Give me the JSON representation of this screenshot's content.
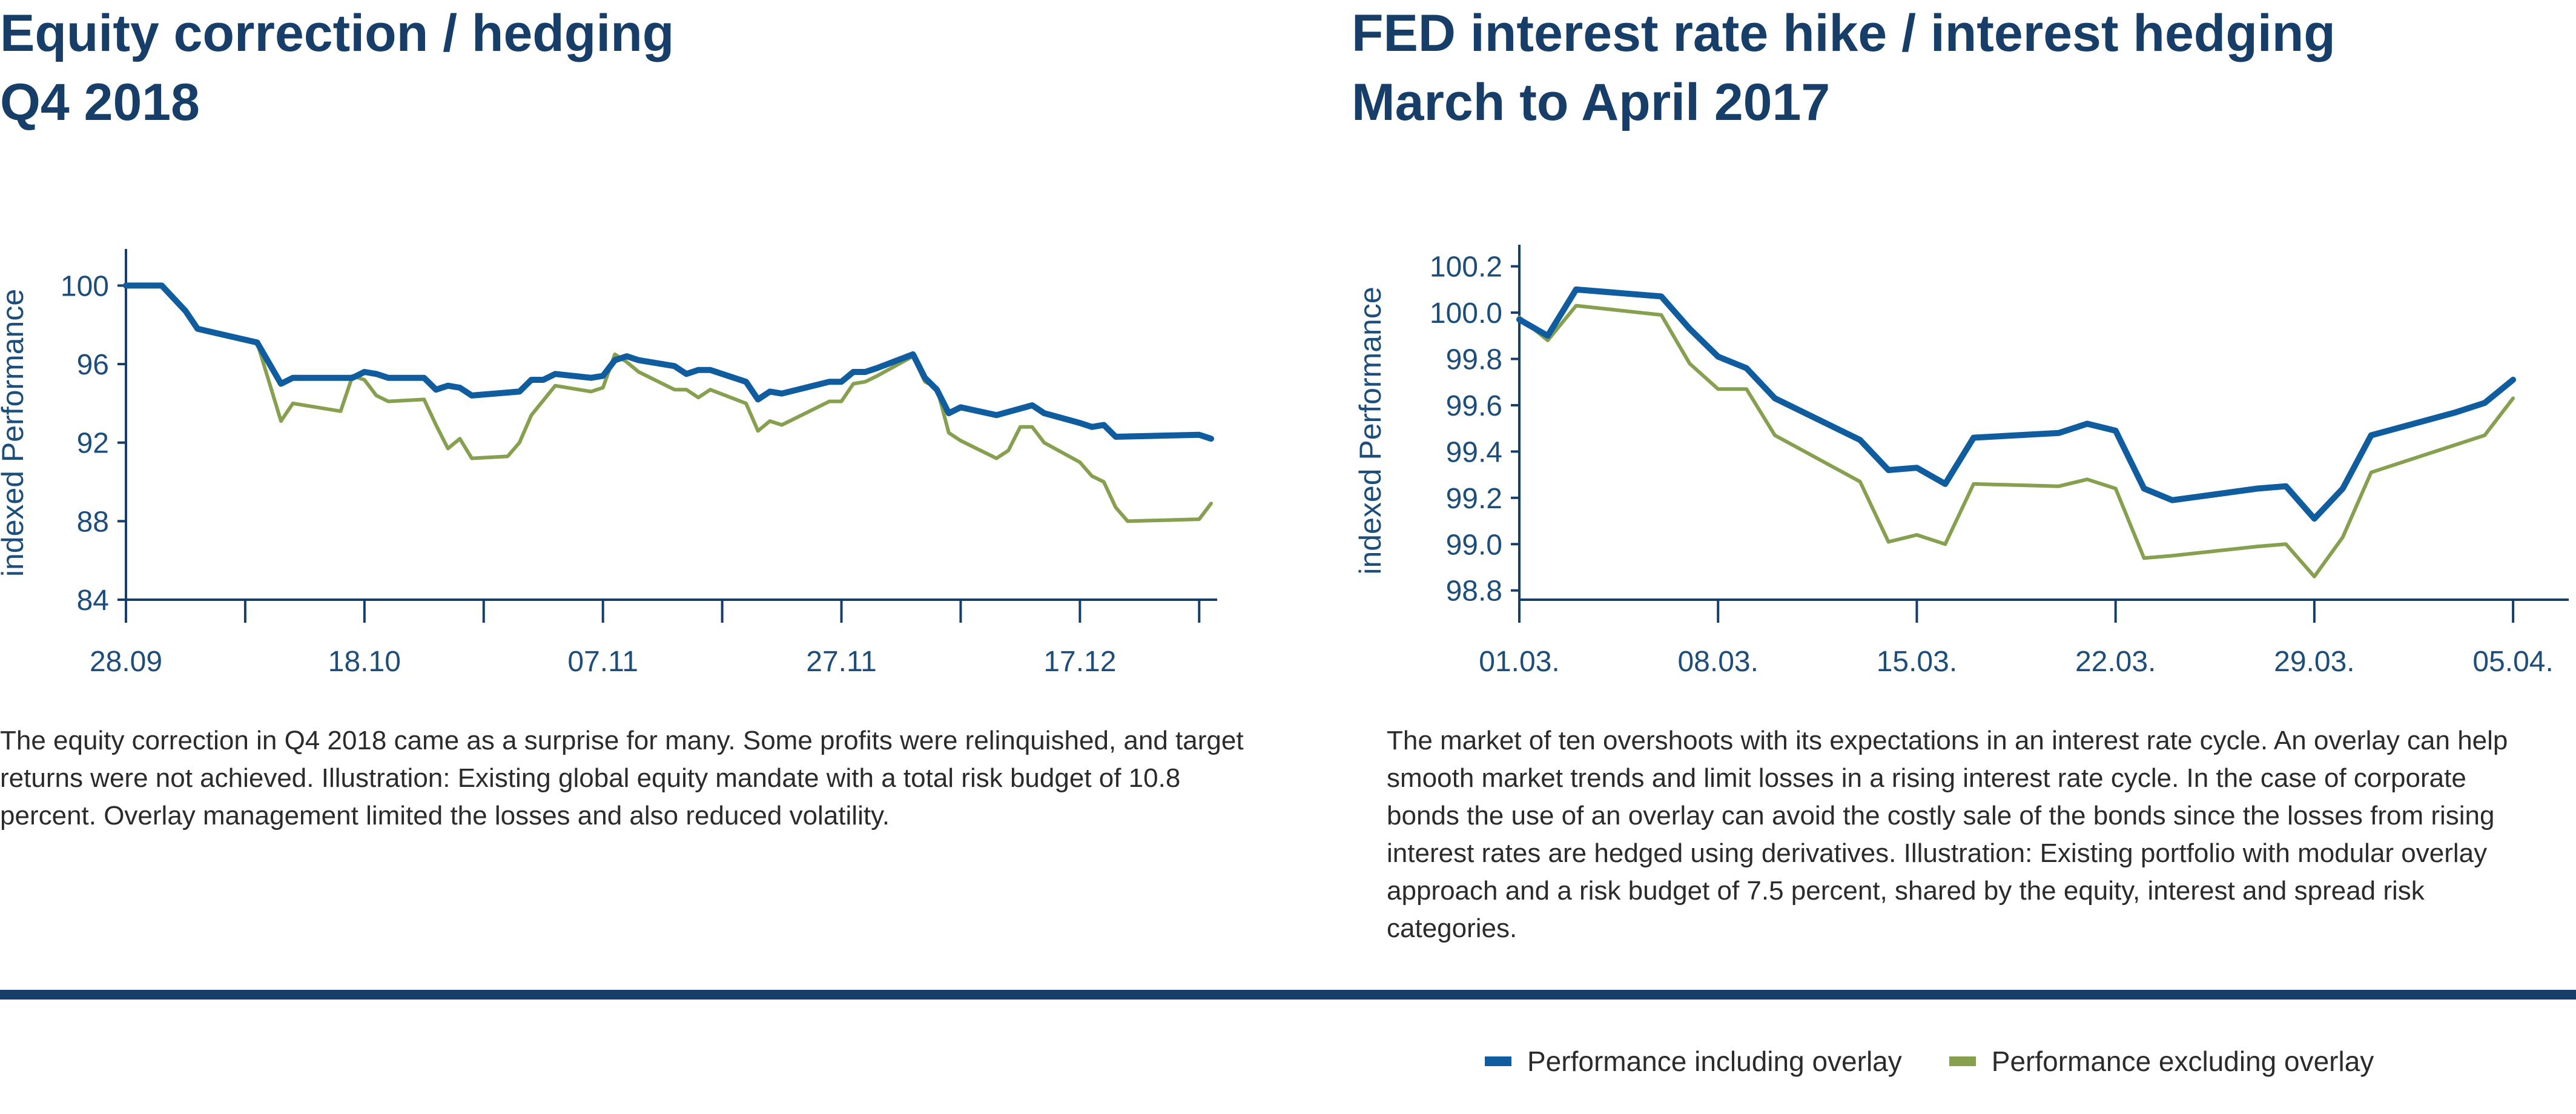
{
  "colors": {
    "with_overlay": "#0f5c9e",
    "without_overlay": "#86a04f",
    "axis": "#163e68",
    "title": "#163e68",
    "divider": "#163e68"
  },
  "left": {
    "title_line1": "Equity correction / hedging",
    "title_line2": "Q4 2018",
    "caption": "The equity correction in Q4 2018 came as a surprise for many. Some profits were relinquished, and target returns were not achieved. Illustration: Existing global equity mandate with a total risk budget of 10.8 percent. Overlay management limited the losses and also reduced volatility."
  },
  "right": {
    "title_line1": "FED interest rate hike / interest hedging",
    "title_line2": "March to April 2017",
    "caption": "The market of ten overshoots with its expectations in an interest rate cycle. An overlay can help smooth market trends and limit losses in a rising interest rate cycle. In the case of corporate bonds the use of an overlay can avoid the costly sale of the bonds since the losses from rising interest rates are hedged using derivatives. Illustration: Existing portfolio with modular overlay approach and a risk budget of 7.5 percent, shared by the equity, interest and spread risk categories."
  },
  "legend": {
    "with_overlay": "Performance including overlay",
    "without_overlay": "Performance excluding overlay"
  },
  "chart_data": [
    {
      "type": "line",
      "ylabel": "indexed Performance",
      "ylim": [
        84,
        101
      ],
      "yticks": [
        84,
        88,
        92,
        96,
        100
      ],
      "ytick_labels": [
        "84",
        "88",
        "92",
        "96",
        "100"
      ],
      "xlim": [
        "2018-09-28",
        "2018-12-28"
      ],
      "xticks": [
        "2018-09-28",
        "2018-10-08",
        "2018-10-18",
        "2018-10-28",
        "2018-11-07",
        "2018-11-17",
        "2018-11-27",
        "2018-12-07",
        "2018-12-17",
        "2018-12-27"
      ],
      "xtick_labels": [
        "28.09",
        "",
        "18.10",
        "",
        "07.11",
        "",
        "27.11",
        "",
        "17.12",
        ""
      ],
      "grid": false,
      "series": [
        {
          "name": "Performance including overlay",
          "color_key": "with_overlay",
          "points": [
            [
              "2018-09-28",
              100.0
            ],
            [
              "2018-10-01",
              100.0
            ],
            [
              "2018-10-03",
              98.7
            ],
            [
              "2018-10-04",
              97.8
            ],
            [
              "2018-10-09",
              97.1
            ],
            [
              "2018-10-11",
              95.0
            ],
            [
              "2018-10-12",
              95.3
            ],
            [
              "2018-10-15",
              95.3
            ],
            [
              "2018-10-17",
              95.3
            ],
            [
              "2018-10-18",
              95.6
            ],
            [
              "2018-10-19",
              95.5
            ],
            [
              "2018-10-20",
              95.3
            ],
            [
              "2018-10-23",
              95.3
            ],
            [
              "2018-10-24",
              94.7
            ],
            [
              "2018-10-25",
              94.9
            ],
            [
              "2018-10-26",
              94.8
            ],
            [
              "2018-10-27",
              94.4
            ],
            [
              "2018-10-31",
              94.6
            ],
            [
              "2018-11-01",
              95.2
            ],
            [
              "2018-11-02",
              95.2
            ],
            [
              "2018-11-03",
              95.5
            ],
            [
              "2018-11-06",
              95.3
            ],
            [
              "2018-11-07",
              95.4
            ],
            [
              "2018-11-08",
              96.2
            ],
            [
              "2018-11-09",
              96.4
            ],
            [
              "2018-11-10",
              96.2
            ],
            [
              "2018-11-13",
              95.9
            ],
            [
              "2018-11-14",
              95.5
            ],
            [
              "2018-11-15",
              95.7
            ],
            [
              "2018-11-16",
              95.7
            ],
            [
              "2018-11-19",
              95.1
            ],
            [
              "2018-11-20",
              94.2
            ],
            [
              "2018-11-21",
              94.6
            ],
            [
              "2018-11-22",
              94.5
            ],
            [
              "2018-11-26",
              95.1
            ],
            [
              "2018-11-27",
              95.1
            ],
            [
              "2018-11-28",
              95.6
            ],
            [
              "2018-11-29",
              95.6
            ],
            [
              "2018-11-30",
              95.8
            ],
            [
              "2018-12-03",
              96.5
            ],
            [
              "2018-12-04",
              95.3
            ],
            [
              "2018-12-05",
              94.7
            ],
            [
              "2018-12-06",
              93.5
            ],
            [
              "2018-12-07",
              93.8
            ],
            [
              "2018-12-10",
              93.4
            ],
            [
              "2018-12-13",
              93.9
            ],
            [
              "2018-12-14",
              93.5
            ],
            [
              "2018-12-17",
              93.0
            ],
            [
              "2018-12-18",
              92.8
            ],
            [
              "2018-12-19",
              92.9
            ],
            [
              "2018-12-20",
              92.3
            ],
            [
              "2018-12-27",
              92.4
            ],
            [
              "2018-12-28",
              92.2
            ]
          ]
        },
        {
          "name": "Performance excluding overlay",
          "color_key": "without_overlay",
          "points": [
            [
              "2018-09-28",
              100.0
            ],
            [
              "2018-10-01",
              100.0
            ],
            [
              "2018-10-03",
              98.7
            ],
            [
              "2018-10-04",
              97.8
            ],
            [
              "2018-10-09",
              97.1
            ],
            [
              "2018-10-11",
              93.1
            ],
            [
              "2018-10-12",
              94.0
            ],
            [
              "2018-10-16",
              93.6
            ],
            [
              "2018-10-17",
              95.4
            ],
            [
              "2018-10-18",
              95.2
            ],
            [
              "2018-10-19",
              94.4
            ],
            [
              "2018-10-20",
              94.1
            ],
            [
              "2018-10-23",
              94.2
            ],
            [
              "2018-10-24",
              92.9
            ],
            [
              "2018-10-25",
              91.7
            ],
            [
              "2018-10-26",
              92.2
            ],
            [
              "2018-10-27",
              91.2
            ],
            [
              "2018-10-30",
              91.3
            ],
            [
              "2018-10-31",
              92.0
            ],
            [
              "2018-11-01",
              93.4
            ],
            [
              "2018-11-03",
              94.9
            ],
            [
              "2018-11-06",
              94.6
            ],
            [
              "2018-11-07",
              94.8
            ],
            [
              "2018-11-08",
              96.5
            ],
            [
              "2018-11-09",
              96.1
            ],
            [
              "2018-11-10",
              95.6
            ],
            [
              "2018-11-13",
              94.7
            ],
            [
              "2018-11-14",
              94.7
            ],
            [
              "2018-11-15",
              94.3
            ],
            [
              "2018-11-16",
              94.7
            ],
            [
              "2018-11-19",
              94.0
            ],
            [
              "2018-11-20",
              92.6
            ],
            [
              "2018-11-21",
              93.1
            ],
            [
              "2018-11-22",
              92.9
            ],
            [
              "2018-11-26",
              94.1
            ],
            [
              "2018-11-27",
              94.1
            ],
            [
              "2018-11-28",
              95.0
            ],
            [
              "2018-11-29",
              95.1
            ],
            [
              "2018-11-30",
              95.4
            ],
            [
              "2018-12-03",
              96.4
            ],
            [
              "2018-12-04",
              95.1
            ],
            [
              "2018-12-05",
              94.8
            ],
            [
              "2018-12-06",
              92.5
            ],
            [
              "2018-12-07",
              92.1
            ],
            [
              "2018-12-10",
              91.2
            ],
            [
              "2018-12-11",
              91.6
            ],
            [
              "2018-12-12",
              92.8
            ],
            [
              "2018-12-13",
              92.8
            ],
            [
              "2018-12-14",
              92.0
            ],
            [
              "2018-12-17",
              91.0
            ],
            [
              "2018-12-18",
              90.3
            ],
            [
              "2018-12-19",
              90.0
            ],
            [
              "2018-12-20",
              88.7
            ],
            [
              "2018-12-21",
              88.0
            ],
            [
              "2018-12-27",
              88.1
            ],
            [
              "2018-12-28",
              88.9
            ]
          ]
        }
      ]
    },
    {
      "type": "line",
      "ylabel": "indexed Performance",
      "ylim": [
        98.76,
        100.22
      ],
      "yticks": [
        98.8,
        99.0,
        99.2,
        99.4,
        99.6,
        99.8,
        100.0,
        100.2
      ],
      "ytick_labels": [
        "98.8",
        "99.0",
        "99.2",
        "99.4",
        "99.6",
        "99.8",
        "100.0",
        "100.2"
      ],
      "xlim": [
        "2017-03-01",
        "2017-04-06"
      ],
      "xticks": [
        "2017-03-01",
        "2017-03-08",
        "2017-03-15",
        "2017-03-22",
        "2017-03-29",
        "2017-04-05"
      ],
      "xtick_labels": [
        "01.03.",
        "08.03.",
        "15.03.",
        "22.03.",
        "29.03.",
        "05.04."
      ],
      "grid": false,
      "series": [
        {
          "name": "Performance including overlay",
          "color_key": "with_overlay",
          "points": [
            [
              "2017-03-01",
              99.97
            ],
            [
              "2017-03-02",
              99.9
            ],
            [
              "2017-03-03",
              100.1
            ],
            [
              "2017-03-06",
              100.07
            ],
            [
              "2017-03-07",
              99.93
            ],
            [
              "2017-03-08",
              99.81
            ],
            [
              "2017-03-09",
              99.76
            ],
            [
              "2017-03-10",
              99.63
            ],
            [
              "2017-03-13",
              99.45
            ],
            [
              "2017-03-14",
              99.32
            ],
            [
              "2017-03-15",
              99.33
            ],
            [
              "2017-03-16",
              99.26
            ],
            [
              "2017-03-17",
              99.46
            ],
            [
              "2017-03-20",
              99.48
            ],
            [
              "2017-03-21",
              99.52
            ],
            [
              "2017-03-22",
              99.49
            ],
            [
              "2017-03-23",
              99.24
            ],
            [
              "2017-03-24",
              99.19
            ],
            [
              "2017-03-27",
              99.24
            ],
            [
              "2017-03-28",
              99.25
            ],
            [
              "2017-03-29",
              99.11
            ],
            [
              "2017-03-30",
              99.24
            ],
            [
              "2017-03-31",
              99.47
            ],
            [
              "2017-04-03",
              99.57
            ],
            [
              "2017-04-04",
              99.61
            ],
            [
              "2017-04-05",
              99.71
            ]
          ]
        },
        {
          "name": "Performance excluding overlay",
          "color_key": "without_overlay",
          "points": [
            [
              "2017-03-01",
              99.98
            ],
            [
              "2017-03-02",
              99.88
            ],
            [
              "2017-03-03",
              100.03
            ],
            [
              "2017-03-06",
              99.99
            ],
            [
              "2017-03-07",
              99.78
            ],
            [
              "2017-03-08",
              99.67
            ],
            [
              "2017-03-09",
              99.67
            ],
            [
              "2017-03-10",
              99.47
            ],
            [
              "2017-03-13",
              99.27
            ],
            [
              "2017-03-14",
              99.01
            ],
            [
              "2017-03-15",
              99.04
            ],
            [
              "2017-03-16",
              99.0
            ],
            [
              "2017-03-17",
              99.26
            ],
            [
              "2017-03-20",
              99.25
            ],
            [
              "2017-03-21",
              99.28
            ],
            [
              "2017-03-22",
              99.24
            ],
            [
              "2017-03-23",
              98.94
            ],
            [
              "2017-03-24",
              98.95
            ],
            [
              "2017-03-27",
              98.99
            ],
            [
              "2017-03-28",
              99.0
            ],
            [
              "2017-03-29",
              98.86
            ],
            [
              "2017-03-30",
              99.03
            ],
            [
              "2017-03-31",
              99.31
            ],
            [
              "2017-04-03",
              99.43
            ],
            [
              "2017-04-04",
              99.47
            ],
            [
              "2017-04-05",
              99.63
            ]
          ]
        }
      ]
    }
  ]
}
